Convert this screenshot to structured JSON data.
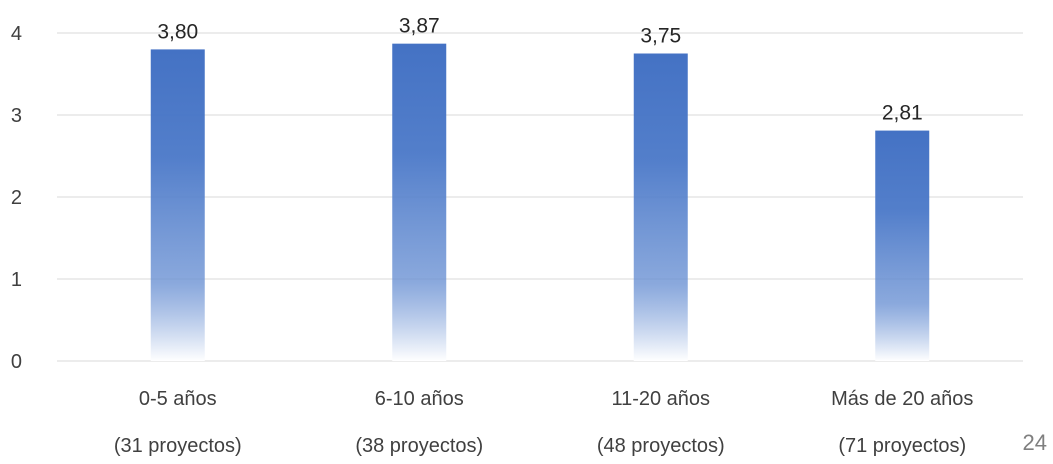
{
  "page_number": "24",
  "chart_data": {
    "type": "bar",
    "categories": [
      "0-5 años",
      "6-10 años",
      "11-20 años",
      "Más de 20 años"
    ],
    "subcategories": [
      "(31 proyectos)",
      "(38 proyectos)",
      "(48 proyectos)",
      "(71 proyectos)"
    ],
    "values": [
      3.8,
      3.87,
      3.75,
      2.81
    ],
    "data_labels": [
      "3,80",
      "3,87",
      "3,75",
      "2,81"
    ],
    "y_ticks": [
      "0",
      "1",
      "2",
      "3",
      "4"
    ],
    "ylim": [
      0,
      4
    ],
    "grid": true,
    "bar_color": "#4472C4",
    "title": "",
    "xlabel": "",
    "ylabel": ""
  }
}
